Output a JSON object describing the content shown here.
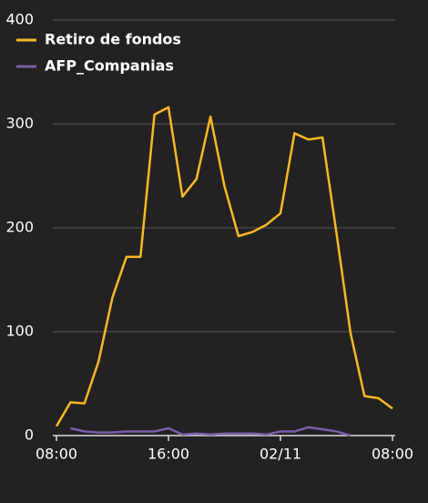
{
  "chart_data": {
    "type": "line",
    "x": [
      0,
      1,
      2,
      3,
      4,
      5,
      6,
      7,
      8,
      9,
      10,
      11,
      12,
      13,
      14,
      15,
      16,
      17,
      18,
      19,
      20,
      21,
      22,
      23,
      24
    ],
    "series": [
      {
        "name": "Retiro de fondos",
        "color": "#f7b924",
        "values": [
          9,
          32,
          31,
          71,
          133,
          172,
          172,
          309,
          316,
          230,
          247,
          307,
          240,
          192,
          196,
          203,
          214,
          291,
          285,
          287,
          195,
          99,
          38,
          36,
          26
        ]
      },
      {
        "name": "AFP_Companias",
        "color": "#7b5ea7",
        "values": [
          null,
          7,
          4,
          3,
          3,
          4,
          4,
          4,
          7,
          1,
          2,
          1,
          2,
          2,
          2,
          1,
          4,
          4,
          8,
          6,
          4,
          0,
          null,
          null,
          null
        ]
      }
    ],
    "xlim": [
      0,
      24
    ],
    "xticks": [
      {
        "value": 0,
        "label": "08:00"
      },
      {
        "value": 8,
        "label": "16:00"
      },
      {
        "value": 16,
        "label": "02/11"
      },
      {
        "value": 24,
        "label": "08:00"
      }
    ],
    "ylim": [
      0,
      400
    ],
    "yticks": [
      0,
      100,
      200,
      300,
      400
    ],
    "grid": true,
    "legend": "top-left"
  }
}
